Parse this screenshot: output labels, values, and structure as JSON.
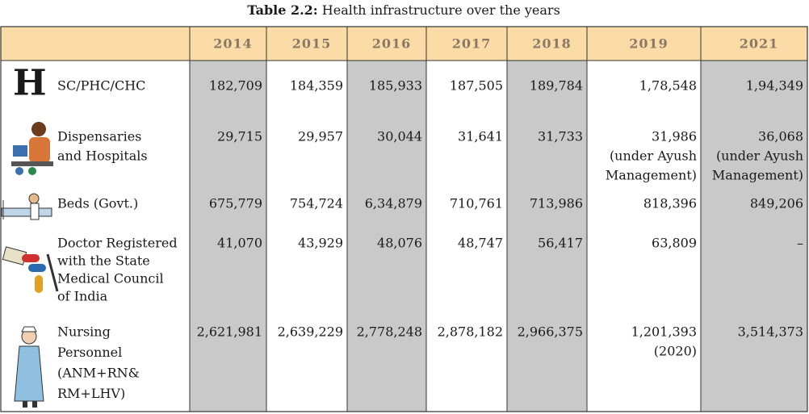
{
  "title": {
    "label": "Table 2.2:",
    "text": "Health infrastructure over the years"
  },
  "table": {
    "columns": [
      "2014",
      "2015",
      "2016",
      "2017",
      "2018",
      "2019",
      "2021"
    ],
    "rows": [
      {
        "icon": "H",
        "label": [
          "SC/PHC/CHC"
        ],
        "cells": [
          [
            "182,709"
          ],
          [
            "184,359"
          ],
          [
            "185,933"
          ],
          [
            "187,505"
          ],
          [
            "189,784"
          ],
          [
            "1,78,548"
          ],
          [
            "1,94,349"
          ]
        ]
      },
      {
        "label": [
          "Dispensaries",
          "and Hospitals"
        ],
        "cells": [
          [
            "29,715"
          ],
          [
            "29,957"
          ],
          [
            "30,044"
          ],
          [
            "31,641"
          ],
          [
            "31,733"
          ],
          [
            "31,986",
            "(under Ayush",
            "Management)"
          ],
          [
            "36,068",
            "(under Ayush",
            "Management)"
          ]
        ]
      },
      {
        "label": [
          "Beds (Govt.)"
        ],
        "cells": [
          [
            "675,779"
          ],
          [
            "754,724"
          ],
          [
            "6,34,879"
          ],
          [
            "710,761"
          ],
          [
            "713,986"
          ],
          [
            "818,396"
          ],
          [
            "849,206"
          ]
        ]
      },
      {
        "label": [
          "Doctor Registered",
          "with the State",
          "Medical Council",
          "of India"
        ],
        "cells": [
          [
            "41,070"
          ],
          [
            "43,929"
          ],
          [
            "48,076"
          ],
          [
            "48,747"
          ],
          [
            "56,417"
          ],
          [
            "63,809"
          ],
          [
            "–"
          ]
        ]
      },
      {
        "label": [
          "Nursing",
          "Personnel",
          "(ANM+RN&",
          "RM+LHV)"
        ],
        "cells": [
          [
            "2,621,981"
          ],
          [
            "2,639,229"
          ],
          [
            "2,778,248"
          ],
          [
            "2,878,182"
          ],
          [
            "2,966,375"
          ],
          [
            "1,201,393",
            "(2020)"
          ],
          [
            "3,514,373"
          ]
        ]
      }
    ]
  }
}
